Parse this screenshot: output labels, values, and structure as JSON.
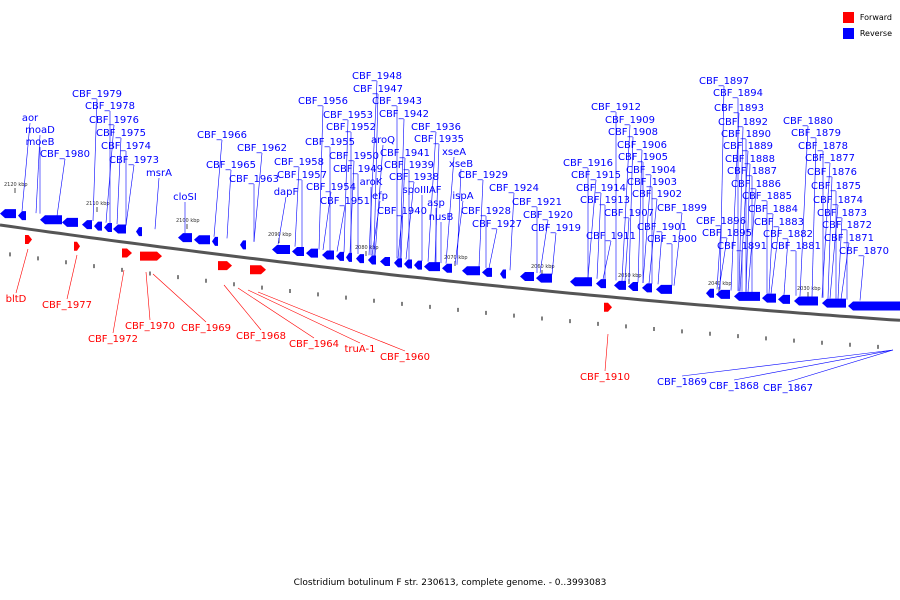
{
  "legend": {
    "forward": {
      "label": "Forward",
      "color": "#ff0000"
    },
    "reverse": {
      "label": "Reverse",
      "color": "#0000ff"
    }
  },
  "caption": "Clostridium botulinum F str. 230613, complete genome. - 0..3993083",
  "ticks": [
    "2120 kbp",
    "2110 kbp",
    "2100 kbp",
    "2090 kbp",
    "2080 kbp",
    "2070 kbp",
    "2060 kbp",
    "2050 kbp",
    "2040 kbp",
    "2030 kbp"
  ],
  "reverse_labels": [
    "aor",
    "moaD",
    "moeB",
    "CBF_1980",
    "CBF_1979",
    "CBF_1978",
    "CBF_1976",
    "CBF_1975",
    "CBF_1974",
    "CBF_1973",
    "msrA",
    "cloSI",
    "CBF_1966",
    "CBF_1965",
    "CBF_1963",
    "CBF_1962",
    "CBF_1958",
    "CBF_1957",
    "dapF",
    "CBF_1956",
    "CBF_1955",
    "CBF_1954",
    "CBF_1953",
    "CBF_1952",
    "CBF_1951",
    "CBF_1950",
    "CBF_1949",
    "CBF_1948",
    "CBF_1947",
    "CBF_1943",
    "aroQ",
    "CBF_1942",
    "aroK",
    "efp",
    "CBF_1941",
    "CBF_1939",
    "CBF_1938",
    "CBF_1940",
    "spoIIIAF",
    "CBF_1936",
    "CBF_1935",
    "asp",
    "xseA",
    "xseB",
    "nusB",
    "ispA",
    "CBF_1929",
    "CBF_1928",
    "CBF_1927",
    "CBF_1924",
    "CBF_1921",
    "CBF_1920",
    "CBF_1919",
    "CBF_1912",
    "CBF_1909",
    "CBF_1908",
    "CBF_1916",
    "CBF_1915",
    "CBF_1914",
    "CBF_1913",
    "CBF_1911",
    "CBF_1906",
    "CBF_1905",
    "CBF_1904",
    "CBF_1907",
    "CBF_1903",
    "CBF_1902",
    "CBF_1901",
    "CBF_1900",
    "CBF_1899",
    "CBF_1897",
    "CBF_1894",
    "CBF_1893",
    "CBF_1892",
    "CBF_1890",
    "CBF_1889",
    "CBF_1888",
    "CBF_1887",
    "CBF_1886",
    "CBF_1896",
    "CBF_1885",
    "CBF_1895",
    "CBF_1884",
    "CBF_1891",
    "CBF_1883",
    "CBF_1882",
    "CBF_1881",
    "CBF_1880",
    "CBF_1879",
    "CBF_1878",
    "CBF_1877",
    "CBF_1876",
    "CBF_1875",
    "CBF_1874",
    "CBF_1873",
    "CBF_1872",
    "CBF_1871",
    "CBF_1870",
    "CBF_1869",
    "CBF_1868",
    "CBF_1867"
  ],
  "forward_labels": [
    "bltD",
    "CBF_1977",
    "CBF_1972",
    "CBF_1970",
    "CBF_1969",
    "CBF_1968",
    "CBF_1964",
    "truA-1",
    "CBF_1960",
    "CBF_1910"
  ]
}
